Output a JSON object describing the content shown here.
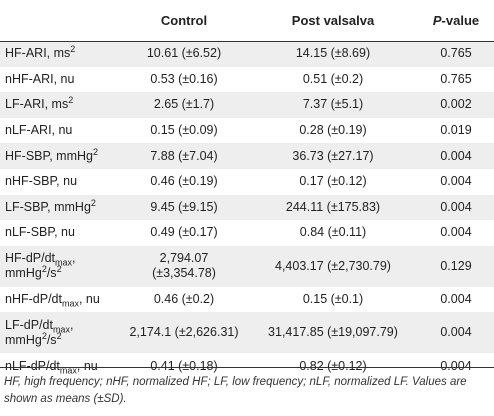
{
  "table": {
    "headers": {
      "variable": "",
      "control": "Control",
      "post": "Post valsalva",
      "p_italic": "P",
      "p_rest": "-value"
    },
    "rows": [
      {
        "base": "HF-ARI, ms",
        "sup": "2",
        "unit": "",
        "control": "10.61 (±6.52)",
        "post": "14.15 (±8.69)",
        "p": "0.765"
      },
      {
        "base": "nHF-ARI, nu",
        "sup": "",
        "unit": "",
        "control": "0.53 (±0.16)",
        "post": "0.51 (±0.2)",
        "p": "0.765"
      },
      {
        "base": "LF-ARI, ms",
        "sup": "2",
        "unit": "",
        "control": "2.65 (±1.7)",
        "post": "7.37 (±5.1)",
        "p": "0.002"
      },
      {
        "base": "nLF-ARI, nu",
        "sup": "",
        "unit": "",
        "control": "0.15 (±0.09)",
        "post": "0.28 (±0.19)",
        "p": "0.019"
      },
      {
        "base": "HF-SBP, mmHg",
        "sup": "2",
        "unit": "",
        "control": "7.88 (±7.04)",
        "post": "36.73 (±27.17)",
        "p": "0.004"
      },
      {
        "base": "nHF-SBP, nu",
        "sup": "",
        "unit": "",
        "control": "0.46 (±0.19)",
        "post": "0.17 (±0.12)",
        "p": "0.004"
      },
      {
        "base": "LF-SBP, mmHg",
        "sup": "2",
        "unit": "",
        "control": "9.45 (±9.15)",
        "post": "244.11 (±175.83)",
        "p": "0.004"
      },
      {
        "base": "nLF-SBP, nu",
        "sup": "",
        "unit": "",
        "control": "0.49 (±0.17)",
        "post": "0.84 (±0.11)",
        "p": "0.004"
      }
    ],
    "deriv_rows": [
      {
        "pre": "HF-dP/dt",
        "sub": "max",
        "post_text": ",",
        "line2": "mmHg",
        "line2_sup": "2",
        "line2_tail": "/s",
        "line2_tail_sup": "2",
        "control_l1": "2,794.07",
        "control_l2": "(±3,354.78)",
        "post": "4,403.17 (±2,730.79)",
        "p": "0.129"
      },
      {
        "pre": "nHF-dP/dt",
        "sub": "max",
        "post_text": ", nu",
        "control": "0.46 (±0.2)",
        "post": "0.15 (±0.1)",
        "p": "0.004"
      },
      {
        "pre": "LF-dP/dt",
        "sub": "max",
        "post_text": ",",
        "line2": "mmHg",
        "line2_sup": "2",
        "line2_tail": "/s",
        "line2_tail_sup": "2",
        "control": "2,174.1 (±2,626.31)",
        "post": "31,417.85 (±19,097.79)",
        "p": "0.004"
      },
      {
        "pre": "nLF-dP/dt",
        "sub": "max",
        "post_text": ", nu",
        "control": "0.41 (±0.18)",
        "post": "0.82 (±0.12)",
        "p": "0.004"
      }
    ]
  },
  "footnote": "HF, high frequency; nHF, normalized HF; LF, low frequency; nLF, normalized LF. Values are shown as means (±SD)."
}
